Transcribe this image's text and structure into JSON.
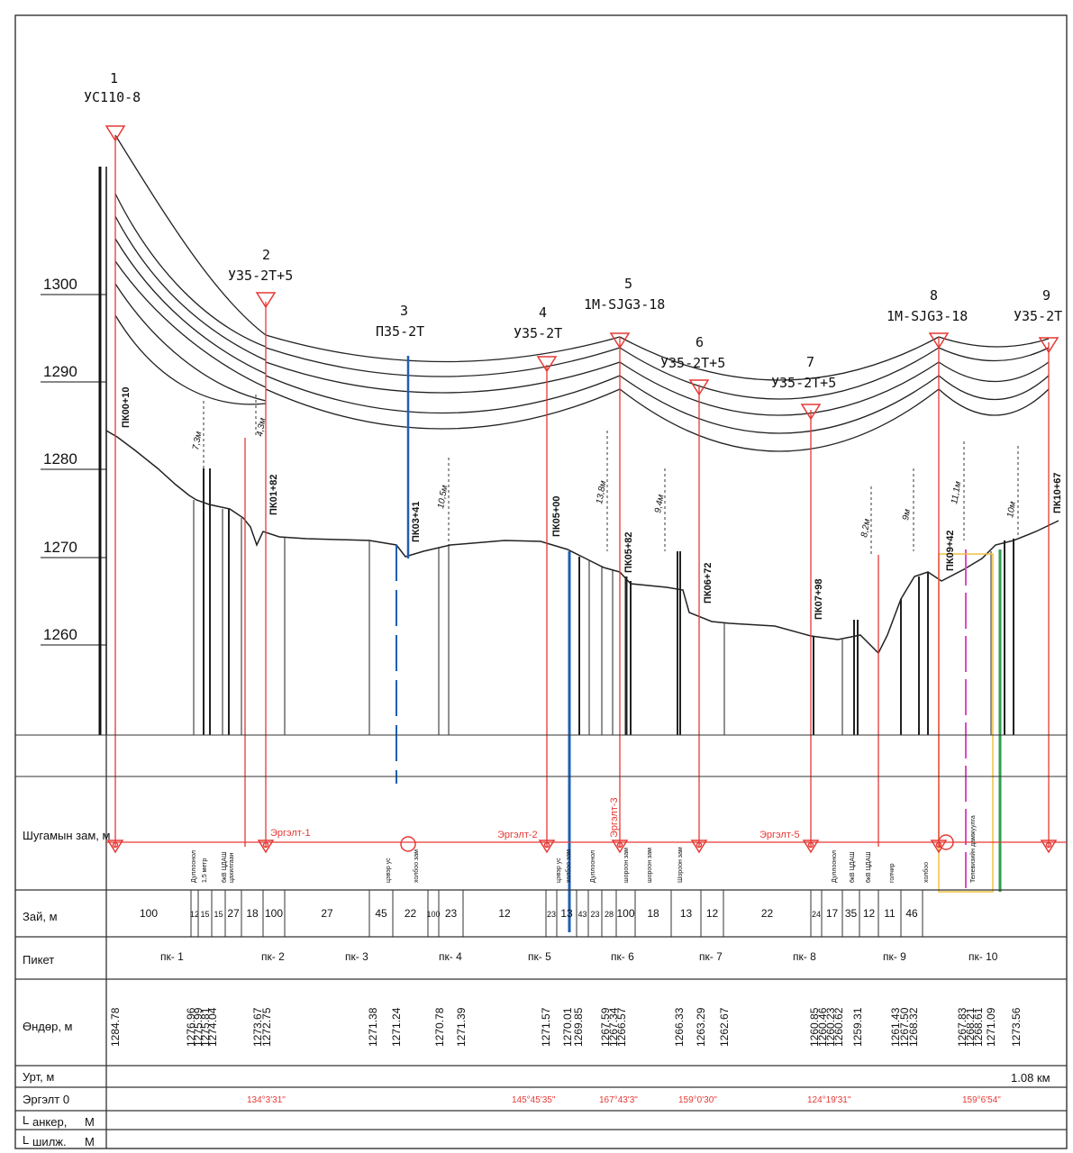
{
  "y_axis": {
    "ticks": [
      "1300",
      "1290",
      "1280",
      "1270",
      "1260"
    ]
  },
  "poles": [
    {
      "num": "1",
      "type": "УС110-8"
    },
    {
      "num": "2",
      "type": "У35-2Т+5"
    },
    {
      "num": "3",
      "type": "П35-2Т"
    },
    {
      "num": "4",
      "type": "У35-2Т"
    },
    {
      "num": "5",
      "type": "1М-SJG3-18"
    },
    {
      "num": "6",
      "type": "У35-2Т+5"
    },
    {
      "num": "7",
      "type": "У35-2Т+5"
    },
    {
      "num": "8",
      "type": "1М-SJG3-18"
    },
    {
      "num": "9",
      "type": "У35-2Т"
    }
  ],
  "pickets": [
    "ПК00+10",
    "ПК01+82",
    "ПК03+41",
    "ПК05+00",
    "ПК05+82",
    "ПК06+72",
    "ПК07+98",
    "ПК09+42",
    "ПК10+67"
  ],
  "clearances": [
    "7,3м",
    "4,3м",
    "10,5м",
    "13,8м",
    "9,4м",
    "8,2м",
    "9м",
    "11,1м",
    "10м"
  ],
  "table": {
    "row_labels": {
      "shugam": "Шугамын зам, м",
      "zai": "Зай, м",
      "piket": "Пикет",
      "ondor": "Өндөр, м",
      "urt": "Урт, м",
      "ergelt": "Эргэлт 0",
      "anker": "анкер,",
      "anker_unit": "М",
      "shilj": "шилж.",
      "shilj_unit": "М"
    },
    "turn_labels": [
      "Эргэлт-1",
      "Эргэлт-2",
      "Эргэлт-3",
      "Эргэлт-5"
    ],
    "crossings": [
      "Дуллоонол",
      "1,5 метр",
      "6кВ ЦДАШ",
      "цахилгаан",
      "цэвэр ус",
      "холбоо зам",
      "цэвэр ус",
      "холбоо зам",
      "Дуллоонол",
      "шороон зам",
      "шороон зам",
      "Шороон зам",
      "Дуллоонол",
      "6кВ ЦДАШ",
      "6кВ ЦДАШ",
      "голчир",
      "холбоо",
      "Телевизийн дамжуулга"
    ],
    "spans": [
      "100",
      "12",
      "15",
      "15",
      "27",
      "18",
      "100",
      "27",
      "45",
      "22",
      "100",
      "23",
      "12",
      "23",
      "13",
      "43",
      "23",
      "28",
      "100",
      "18",
      "13",
      "12",
      "22",
      "24",
      "17",
      "35",
      "12",
      "11",
      "46"
    ],
    "piket_labels": [
      "пк- 1",
      "пк- 2",
      "пк- 3",
      "пк- 4",
      "пк- 5",
      "пк- 6",
      "пк- 7",
      "пк- 8",
      "пк- 9",
      "пк- 10"
    ],
    "elevations": [
      "1284.78",
      "1276.96",
      "1275.99",
      "1275.81",
      "1274.04",
      "1273.67",
      "1272.75",
      "1271.38",
      "1271.24",
      "1270.78",
      "1271.39",
      "1271.57",
      "1270.01",
      "1269.85",
      "1267.59",
      "1267.34",
      "1266.57",
      "1266.33",
      "1263.29",
      "1262.67",
      "1260.85",
      "1260.46",
      "1260.23",
      "1260.62",
      "1259.31",
      "1261.43",
      "1267.50",
      "1268.32",
      "1267.83",
      "1268.21",
      "1268.61",
      "1271.09",
      "1273.56"
    ],
    "length": "1.08 км",
    "angles": [
      "134°3'31\"",
      "145°45'35\"",
      "167°43'3\"",
      "159°0'30\"",
      "124°19'31\"",
      "159°6'54\""
    ]
  },
  "colors": {
    "line": "#e53935",
    "terrain": "#222222",
    "blue": "#1e5fb4",
    "magenta": "#d94bc8",
    "green": "#2e9e4f",
    "yellow": "#f0c040"
  }
}
